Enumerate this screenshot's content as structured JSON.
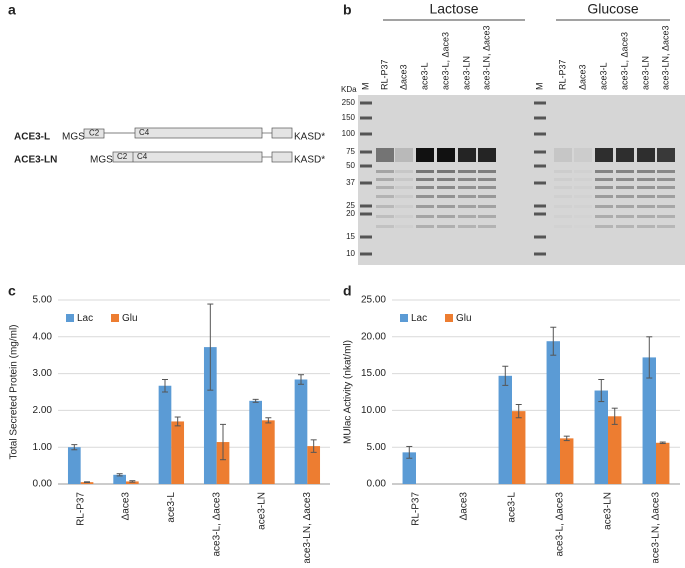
{
  "panels": [
    "a",
    "b",
    "c",
    "d"
  ],
  "diagram": {
    "rows": [
      {
        "name": "ACE3-L",
        "start": "MGS",
        "domains": [
          "C2",
          "C4"
        ],
        "end": "KASD*"
      },
      {
        "name": "ACE3-LN",
        "start": "MGS",
        "domains": [
          "C2",
          "C4"
        ],
        "end": "KASD*"
      }
    ]
  },
  "gel": {
    "groups": [
      "Lactose",
      "Glucose"
    ],
    "marker": "M",
    "unit": "KDa",
    "marker_sizes": [
      "250",
      "150",
      "100",
      "75",
      "50",
      "37",
      "25",
      "20",
      "15",
      "10"
    ],
    "lanes": [
      "RL-P37",
      "Δace3",
      "ace3-L",
      "ace3-L, Δace3",
      "ace3-LN",
      "ace3-LN, Δace3"
    ]
  },
  "chart_data": [
    {
      "type": "bar",
      "ylabel": "Total Secreted Protein (mg/ml)",
      "categories": [
        "RL-P37",
        "Δace3",
        "ace3-L",
        "ace3-L, Δace3",
        "ace3-LN",
        "ace3-LN, Δace3"
      ],
      "series": [
        {
          "name": "Lac",
          "color": "#5b9bd5",
          "values": [
            1.0,
            0.25,
            2.67,
            3.72,
            2.26,
            2.84
          ],
          "errors": [
            0.07,
            0.03,
            0.17,
            1.17,
            0.04,
            0.13
          ]
        },
        {
          "name": "Glu",
          "color": "#ed7d31",
          "values": [
            0.05,
            0.07,
            1.7,
            1.14,
            1.73,
            1.03
          ],
          "errors": [
            0.01,
            0.02,
            0.12,
            0.48,
            0.07,
            0.17
          ]
        }
      ],
      "ylim": [
        0,
        5
      ],
      "yticks": [
        {
          "value": 0,
          "label": "0.00"
        },
        {
          "value": 1,
          "label": "1.00"
        },
        {
          "value": 2,
          "label": "2.00"
        },
        {
          "value": 3,
          "label": "3.00"
        },
        {
          "value": 4,
          "label": "4.00"
        },
        {
          "value": 5,
          "label": "5.00"
        }
      ],
      "grid": true,
      "legend": "top-left"
    },
    {
      "type": "bar",
      "ylabel": "MUlac Activity (nkat/ml)",
      "categories": [
        "RL-P37",
        "Δace3",
        "ace3-L",
        "ace3-L, Δace3",
        "ace3-LN",
        "ace3-LN, Δace3"
      ],
      "series": [
        {
          "name": "Lac",
          "color": "#5b9bd5",
          "values": [
            4.3,
            null,
            14.7,
            19.4,
            12.7,
            17.2
          ],
          "errors": [
            0.8,
            null,
            1.3,
            1.9,
            1.5,
            2.8
          ]
        },
        {
          "name": "Glu",
          "color": "#ed7d31",
          "values": [
            null,
            null,
            9.9,
            6.2,
            9.2,
            5.6
          ],
          "errors": [
            null,
            null,
            0.9,
            0.3,
            1.1,
            0.1
          ]
        }
      ],
      "ylim": [
        0,
        25
      ],
      "yticks": [
        {
          "value": 0,
          "label": "0.00"
        },
        {
          "value": 5,
          "label": "5.00"
        },
        {
          "value": 10,
          "label": "10.00"
        },
        {
          "value": 15,
          "label": "15.00"
        },
        {
          "value": 20,
          "label": "20.00"
        },
        {
          "value": 25,
          "label": "25.00"
        }
      ],
      "grid": true,
      "legend": "top-left"
    }
  ]
}
